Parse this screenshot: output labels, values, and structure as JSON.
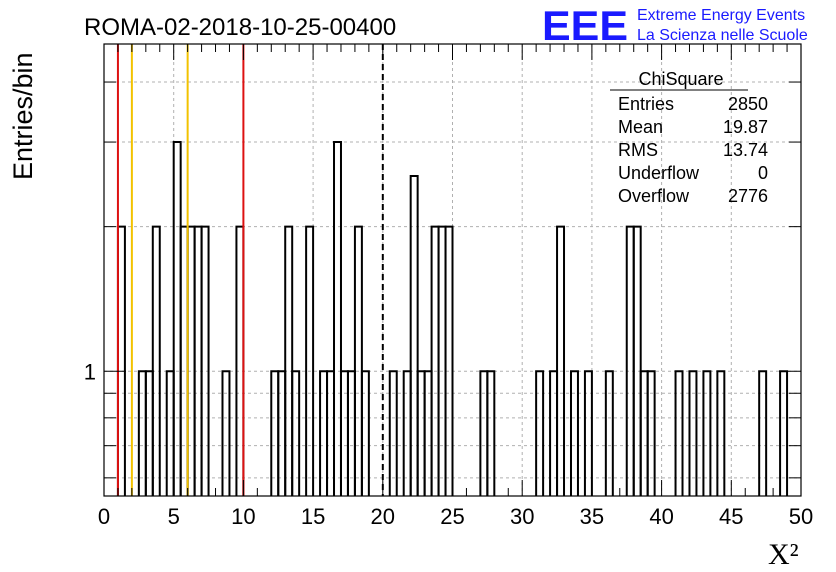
{
  "header": {
    "title": "ROMA-02-2018-10-25-00400",
    "logo_mark": "EEE",
    "logo_line1": "Extreme Energy Events",
    "logo_line2": "La Scienza nelle Scuole"
  },
  "stats_box": {
    "name": "ChiSquare",
    "rows": [
      {
        "label": "Entries",
        "value": "2850"
      },
      {
        "label": "Mean",
        "value": "19.87"
      },
      {
        "label": "RMS",
        "value": "13.74"
      },
      {
        "label": "Underflow",
        "value": "0"
      },
      {
        "label": "Overflow",
        "value": "2776"
      }
    ]
  },
  "colors": {
    "red_line": "#dd1111",
    "yellow_line": "#f2c200",
    "grid": "#b0b0b0",
    "logo": "#1a1aff"
  },
  "chart_data": {
    "type": "bar",
    "style": "step-histogram",
    "xlabel": "X²",
    "ylabel": "Entries/bin",
    "xlim": [
      0,
      50
    ],
    "ylim": [
      0.55,
      4.8
    ],
    "ylog": true,
    "grid": true,
    "bin_width": 0.5,
    "x_ticks": [
      "0",
      "5",
      "10",
      "15",
      "20",
      "25",
      "30",
      "35",
      "40",
      "45",
      "50"
    ],
    "y_ticks": [
      "1"
    ],
    "bins": [
      {
        "x": 1.0,
        "y": 2
      },
      {
        "x": 2.5,
        "y": 1
      },
      {
        "x": 3.0,
        "y": 1
      },
      {
        "x": 3.5,
        "y": 2
      },
      {
        "x": 4.5,
        "y": 1
      },
      {
        "x": 5.0,
        "y": 3
      },
      {
        "x": 5.5,
        "y": 2
      },
      {
        "x": 6.0,
        "y": 2
      },
      {
        "x": 6.5,
        "y": 2
      },
      {
        "x": 7.0,
        "y": 2
      },
      {
        "x": 8.5,
        "y": 1
      },
      {
        "x": 9.5,
        "y": 2
      },
      {
        "x": 12.0,
        "y": 1
      },
      {
        "x": 12.5,
        "y": 1
      },
      {
        "x": 13.0,
        "y": 2
      },
      {
        "x": 13.5,
        "y": 1
      },
      {
        "x": 14.5,
        "y": 2
      },
      {
        "x": 15.5,
        "y": 1
      },
      {
        "x": 16.0,
        "y": 1
      },
      {
        "x": 16.5,
        "y": 3
      },
      {
        "x": 17.0,
        "y": 1
      },
      {
        "x": 17.5,
        "y": 1
      },
      {
        "x": 18.0,
        "y": 2
      },
      {
        "x": 18.5,
        "y": 1
      },
      {
        "x": 20.5,
        "y": 1
      },
      {
        "x": 21.5,
        "y": 1
      },
      {
        "x": 22.0,
        "y": 2.55
      },
      {
        "x": 22.5,
        "y": 1
      },
      {
        "x": 23.0,
        "y": 1
      },
      {
        "x": 23.5,
        "y": 2
      },
      {
        "x": 24.0,
        "y": 2
      },
      {
        "x": 24.5,
        "y": 2
      },
      {
        "x": 27.0,
        "y": 1
      },
      {
        "x": 27.5,
        "y": 1
      },
      {
        "x": 31.0,
        "y": 1
      },
      {
        "x": 32.0,
        "y": 1
      },
      {
        "x": 32.5,
        "y": 2
      },
      {
        "x": 33.5,
        "y": 1
      },
      {
        "x": 34.5,
        "y": 1
      },
      {
        "x": 36.0,
        "y": 1
      },
      {
        "x": 37.5,
        "y": 2
      },
      {
        "x": 38.0,
        "y": 2
      },
      {
        "x": 38.5,
        "y": 1
      },
      {
        "x": 39.0,
        "y": 1
      },
      {
        "x": 41.0,
        "y": 1
      },
      {
        "x": 42.0,
        "y": 1
      },
      {
        "x": 43.0,
        "y": 1
      },
      {
        "x": 44.0,
        "y": 1
      },
      {
        "x": 47.0,
        "y": 1
      },
      {
        "x": 48.5,
        "y": 1
      }
    ],
    "vertical_lines": [
      {
        "x": 1,
        "color": "red"
      },
      {
        "x": 2,
        "color": "yellow"
      },
      {
        "x": 6,
        "color": "yellow"
      },
      {
        "x": 10,
        "color": "red"
      },
      {
        "x": 20,
        "color": "black-dashed"
      }
    ]
  }
}
